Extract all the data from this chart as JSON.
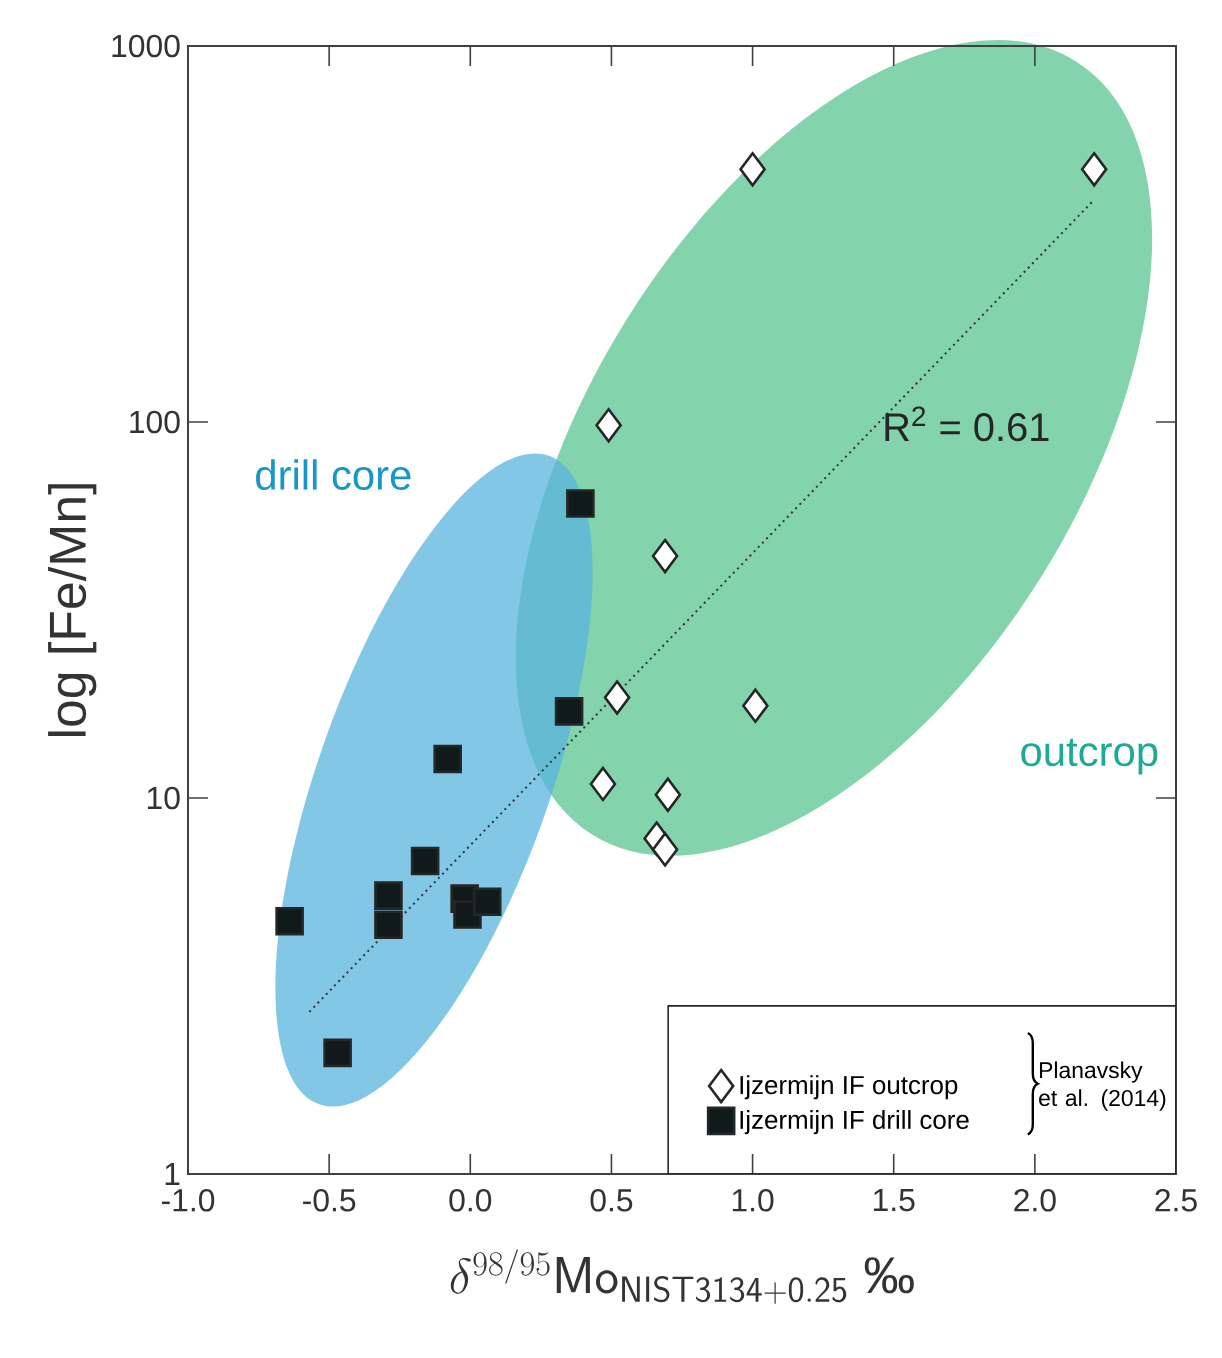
{
  "chart_data": {
    "type": "scatter",
    "xlabel": "\\delta^{98/95}\\mathsf{Mo}_{\\mathsf{NIST3134+0.25}}\\ \\mbox{‰}",
    "ylabel": "log [Fe/Mn]",
    "log": "y",
    "xlim": [
      -1.0,
      2.5
    ],
    "ylim": [
      1,
      1000
    ],
    "xticks": [
      {
        "value": -1.0,
        "label": "-1.0"
      },
      {
        "value": -0.5,
        "label": "-0.5"
      },
      {
        "value": 0.0,
        "label": "0.0"
      },
      {
        "value": 0.5,
        "label": "0.5"
      },
      {
        "value": 1.0,
        "label": "1.0"
      },
      {
        "value": 1.5,
        "label": "1.5"
      },
      {
        "value": 2.0,
        "label": "2.0"
      },
      {
        "value": 2.5,
        "label": "2.5"
      }
    ],
    "yticks": [
      1,
      10,
      100,
      1000
    ],
    "grid": false,
    "legend": "bottom right",
    "series": [
      {
        "name": "Ijzermijn IF outcrop",
        "color": "#ffffff",
        "marker": "diamond",
        "x": [
          1.0,
          2.21,
          0.49,
          0.69,
          0.52,
          1.01,
          0.47,
          0.7,
          0.66,
          0.69
        ],
        "values": [
          470,
          470,
          98,
          44,
          18.5,
          17.6,
          10.9,
          10.2,
          7.8,
          7.3
        ]
      },
      {
        "name": "Ijzermijn IF drill core",
        "color": "#111a1a",
        "marker": "square",
        "x": [
          0.39,
          0.35,
          -0.08,
          -0.16,
          -0.29,
          -0.29,
          -0.64,
          -0.02,
          -0.01,
          0.06,
          -0.47
        ],
        "values": [
          60.7,
          17,
          12.7,
          6.8,
          5.5,
          4.6,
          4.7,
          5.4,
          4.9,
          5.3,
          2.1
        ]
      },
      {
        "type": "line",
        "color": "#333333",
        "line_style": "dotted",
        "marker": "none",
        "x": [
          -0.57,
          2.21
        ],
        "values": [
          2.7,
          390
        ]
      }
    ],
    "annotations": [
      "R$^{2}$ = 0.61",
      "drill core",
      "outcrop",
      "Planavsky et al. (2014)"
    ]
  }
}
